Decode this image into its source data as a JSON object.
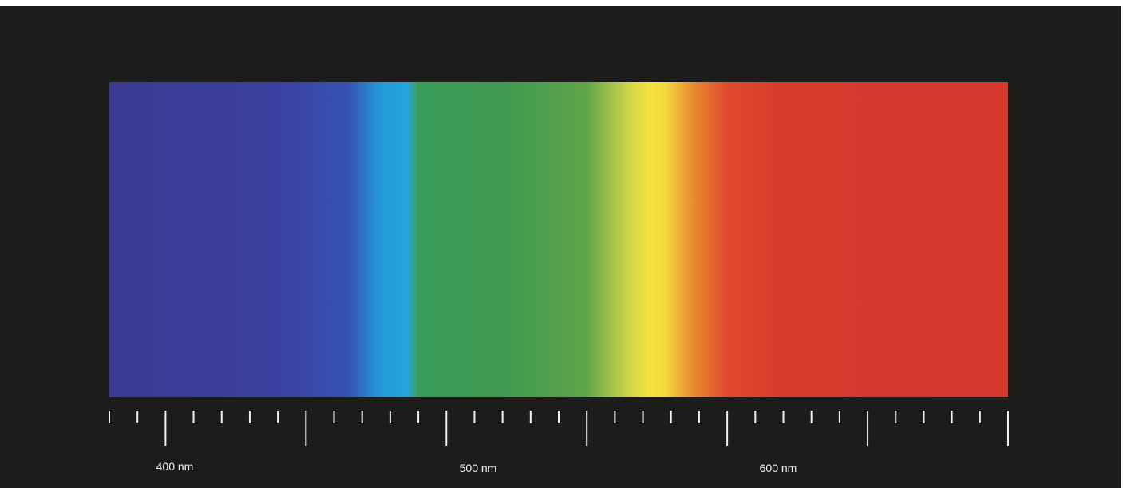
{
  "spectrum": {
    "unit": "nm",
    "range_nm": [
      380,
      700
    ],
    "colors": {
      "background": "#1c1c1a",
      "violet": "#3d3b93",
      "blue": "#3b45a2",
      "cyan": "#26a3dc",
      "green": "#3f9a51",
      "yellow": "#f0e13c",
      "orange": "#e5702c",
      "red": "#d7392e"
    },
    "color_stops": [
      {
        "nm": 380,
        "color": "#3a3a92"
      },
      {
        "nm": 440,
        "color": "#3b40a0"
      },
      {
        "nm": 465,
        "color": "#3652b2"
      },
      {
        "nm": 476,
        "color": "#2497d8"
      },
      {
        "nm": 486,
        "color": "#23a7de"
      },
      {
        "nm": 490,
        "color": "#3a9c5a"
      },
      {
        "nm": 520,
        "color": "#3f9a51"
      },
      {
        "nm": 550,
        "color": "#5fa54a"
      },
      {
        "nm": 564,
        "color": "#c8d24a"
      },
      {
        "nm": 572,
        "color": "#f2e43c"
      },
      {
        "nm": 578,
        "color": "#f2d93a"
      },
      {
        "nm": 588,
        "color": "#e98a30"
      },
      {
        "nm": 600,
        "color": "#df4a2e"
      },
      {
        "nm": 620,
        "color": "#d83a2e"
      },
      {
        "nm": 700,
        "color": "#d7382d"
      }
    ],
    "tick_interval_nm": 10,
    "long_tick_interval_nm": 50,
    "labels": [
      {
        "nm": 400,
        "text": "400 nm"
      },
      {
        "nm": 500,
        "text": "500 nm"
      },
      {
        "nm": 600,
        "text": "600 nm"
      }
    ]
  }
}
